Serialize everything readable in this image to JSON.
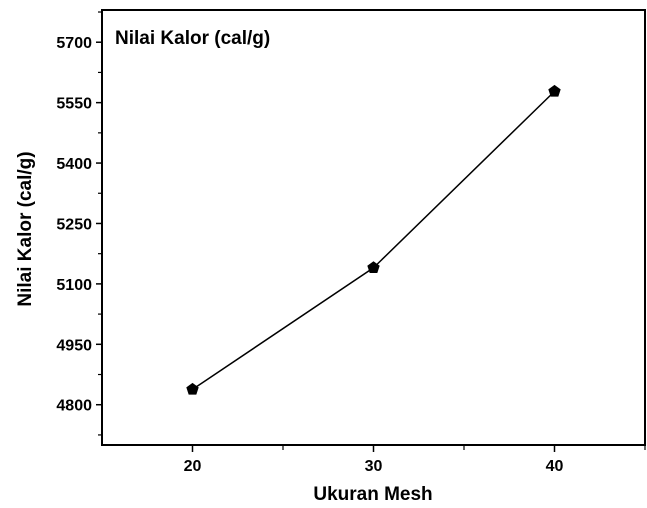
{
  "chart_data": {
    "type": "line",
    "title": "Nilai Kalor (cal/g)",
    "xlabel": "Ukuran Mesh",
    "ylabel": "Nilai Kalor (cal/g)",
    "x": [
      20,
      30,
      40
    ],
    "series": [
      {
        "values": [
          4838,
          5140,
          5578
        ]
      }
    ],
    "xlim": [
      15,
      45
    ],
    "ylim": [
      4700,
      5780
    ],
    "xticks": [
      20,
      30,
      40
    ],
    "yticks": [
      4800,
      4950,
      5100,
      5250,
      5400,
      5550,
      5700
    ],
    "xtick_labels": [
      "20",
      "30",
      "40"
    ],
    "ytick_labels": [
      "4800",
      "4950",
      "5100",
      "5250",
      "5400",
      "5550",
      "5700"
    ],
    "marker": "pentagon",
    "grid": false,
    "colors": {
      "line": "#000000",
      "marker": "#000000",
      "axis": "#000000"
    }
  }
}
